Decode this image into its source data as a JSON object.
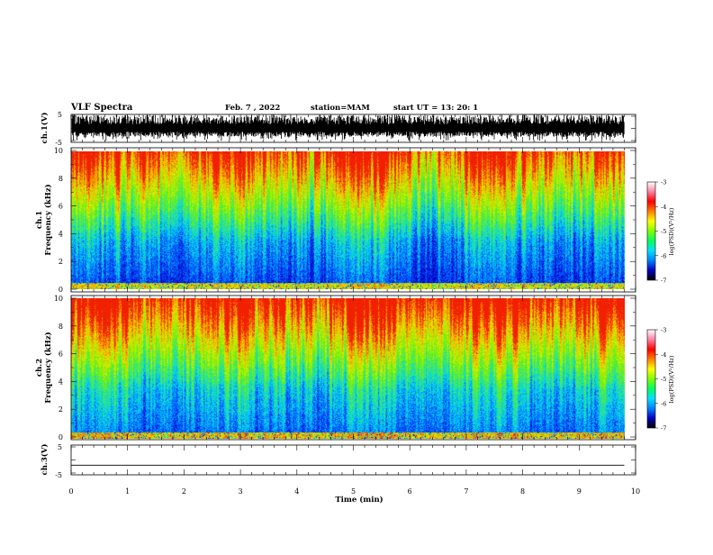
{
  "header": {
    "title": "VLF Spectra",
    "date": "Feb. 7 , 2022",
    "station": "station=MAM",
    "start_ut": "start UT = 13: 20: 1"
  },
  "colors": {
    "spectrogram_scale": [
      "#0000c0",
      "#0050ff",
      "#00c8ff",
      "#28e890",
      "#78f000",
      "#d8f000",
      "#ff9800",
      "#f02000"
    ],
    "colorbar_scale": [
      "#000000",
      "#0000c0",
      "#0080ff",
      "#00e0ff",
      "#00ff60",
      "#80ff00",
      "#ffff00",
      "#ff8000",
      "#ff0000",
      "#ff80a0",
      "#ffffff"
    ]
  },
  "chart_data": [
    {
      "type": "line",
      "name": "ch.1 waveform",
      "ylabel": "ch.1(V)",
      "ylim": [
        -5,
        5
      ],
      "yticks": [
        "5",
        "-5"
      ],
      "xlim": [
        0,
        10
      ],
      "description_level": "dense noise filling roughly -3 to +5 V"
    },
    {
      "type": "heatmap",
      "name": "ch.1 spectrogram",
      "ylabel_line1": "ch.1",
      "ylabel_line2": "Frequency (kHz)",
      "ylim": [
        0,
        10
      ],
      "yticks": [
        "0",
        "2",
        "4",
        "6",
        "8",
        "10"
      ],
      "xlim": [
        0,
        9.8
      ],
      "colorbar": {
        "label": "log(PSD)(V²/Hz)",
        "range": [
          -7,
          -3
        ],
        "ticks": [
          "-3",
          "-4",
          "-5",
          "-6",
          "-7"
        ]
      }
    },
    {
      "type": "heatmap",
      "name": "ch.2 spectrogram",
      "ylabel_line1": "ch.2",
      "ylabel_line2": "Frequency (kHz)",
      "ylim": [
        0,
        10
      ],
      "yticks": [
        "0",
        "2",
        "4",
        "6",
        "8",
        "10"
      ],
      "xlim": [
        0,
        9.8
      ],
      "colorbar": {
        "label": "log(PSD)(V²/Hz)",
        "range": [
          -7,
          -3
        ],
        "ticks": [
          "-3",
          "-4",
          "-5",
          "-6",
          "-7"
        ]
      }
    },
    {
      "type": "line",
      "name": "ch.3 waveform",
      "ylabel": "ch.3(V)",
      "ylim": [
        -5,
        5
      ],
      "yticks": [
        "5",
        "-5"
      ],
      "x": [
        0,
        9.8
      ],
      "y": [
        -2,
        -2
      ]
    }
  ],
  "xaxis": {
    "label": "Time (min)",
    "ticks": [
      "0",
      "1",
      "2",
      "3",
      "4",
      "5",
      "6",
      "7",
      "8",
      "9",
      "10"
    ]
  }
}
